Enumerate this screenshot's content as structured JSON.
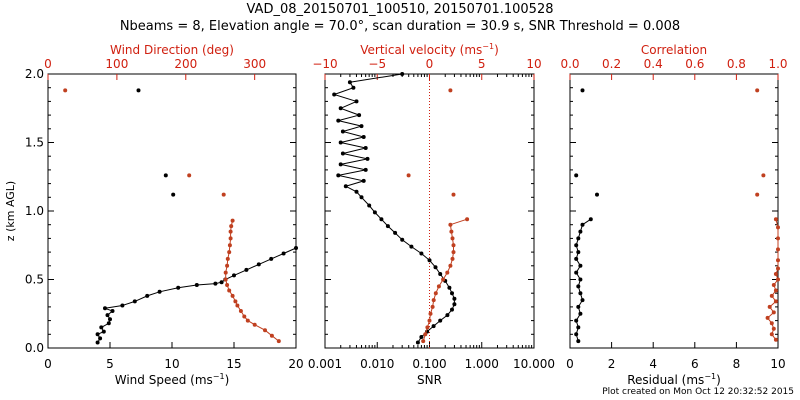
{
  "header": {
    "title_line1": "VAD_08_20150701_100510, 20150701.100528",
    "title_line2": "Nbeams = 8, Elevation angle = 70.0°, scan duration = 30.9 s, SNR Threshold = 0.008"
  },
  "footer": {
    "created": "Plot created on Mon Oct 12 20:32:52 2015"
  },
  "colors": {
    "black_series": "#000000",
    "red_series": "#c04020",
    "red_axis": "#d02010"
  },
  "chart_data": [
    {
      "type": "scatter",
      "ylabel": "z (km AGL)",
      "ylim": [
        0.0,
        2.0
      ],
      "yticks": [
        "0.0",
        "0.5",
        "1.0",
        "1.5",
        "2.0"
      ],
      "bottom_axis": {
        "label": "Wind Speed (ms",
        "label_sup": "−1",
        "label_end": ")",
        "lim": [
          0,
          20
        ],
        "ticks": [
          "0",
          "5",
          "10",
          "15",
          "20"
        ]
      },
      "top_axis": {
        "label": "Wind Direction (deg)",
        "lim": [
          0,
          360
        ],
        "ticks": [
          "0",
          "100",
          "200",
          "300"
        ]
      },
      "series": [
        {
          "axis": "bottom",
          "color": "black",
          "line": true,
          "points": [
            [
              4.0,
              0.04
            ],
            [
              4.2,
              0.07
            ],
            [
              4.0,
              0.1
            ],
            [
              4.5,
              0.12
            ],
            [
              4.3,
              0.15
            ],
            [
              4.9,
              0.18
            ],
            [
              5.0,
              0.21
            ],
            [
              4.8,
              0.24
            ],
            [
              5.2,
              0.27
            ],
            [
              4.6,
              0.29
            ],
            [
              6.0,
              0.31
            ],
            [
              7.0,
              0.34
            ],
            [
              8.0,
              0.38
            ],
            [
              9.0,
              0.41
            ],
            [
              10.5,
              0.44
            ],
            [
              12.0,
              0.46
            ],
            [
              13.5,
              0.47
            ],
            [
              14.0,
              0.48
            ],
            [
              14.3,
              0.5
            ],
            [
              15.0,
              0.53
            ],
            [
              16.0,
              0.57
            ],
            [
              17.0,
              0.61
            ],
            [
              18.0,
              0.65
            ],
            [
              19.0,
              0.69
            ],
            [
              20.0,
              0.73
            ]
          ]
        },
        {
          "axis": "bottom",
          "color": "black",
          "line": false,
          "points": [
            [
              7.3,
              1.88
            ],
            [
              9.5,
              1.26
            ],
            [
              10.1,
              1.12
            ]
          ]
        },
        {
          "axis": "top",
          "color": "red",
          "line": true,
          "points": [
            [
              335,
              0.05
            ],
            [
              325,
              0.09
            ],
            [
              315,
              0.13
            ],
            [
              300,
              0.17
            ],
            [
              290,
              0.2
            ],
            [
              285,
              0.23
            ],
            [
              280,
              0.27
            ],
            [
              275,
              0.31
            ],
            [
              272,
              0.34
            ],
            [
              268,
              0.38
            ],
            [
              263,
              0.42
            ],
            [
              260,
              0.46
            ],
            [
              258,
              0.5
            ],
            [
              258,
              0.55
            ],
            [
              260,
              0.6
            ],
            [
              261,
              0.65
            ],
            [
              263,
              0.7
            ],
            [
              264,
              0.75
            ],
            [
              265,
              0.8
            ],
            [
              265,
              0.85
            ],
            [
              266,
              0.89
            ],
            [
              268,
              0.93
            ]
          ]
        },
        {
          "axis": "top",
          "color": "red",
          "line": false,
          "points": [
            [
              25,
              1.88
            ],
            [
              205,
              1.26
            ],
            [
              255,
              1.12
            ]
          ]
        }
      ]
    },
    {
      "type": "scatter",
      "ylim": [
        0.0,
        2.0
      ],
      "bottom_axis": {
        "label": "SNR",
        "scale": "log",
        "lim": [
          0.001,
          10.0
        ],
        "ticks": [
          "0.001",
          "0.010",
          "0.100",
          "1.000",
          "10.000"
        ]
      },
      "top_axis": {
        "label": "Vertical velocity (ms",
        "label_sup": "−1",
        "label_end": ")",
        "lim": [
          -10,
          10
        ],
        "ticks": [
          "−10",
          "−5",
          "0",
          "5",
          "10"
        ]
      },
      "reference_line": {
        "axis": "top",
        "value": 0
      },
      "series": [
        {
          "axis": "bottom",
          "color": "black",
          "line": true,
          "points": [
            [
              0.03,
              2.0
            ],
            [
              0.003,
              1.94
            ],
            [
              0.0035,
              1.9
            ],
            [
              0.0015,
              1.85
            ],
            [
              0.004,
              1.8
            ],
            [
              0.002,
              1.75
            ],
            [
              0.0045,
              1.7
            ],
            [
              0.0018,
              1.66
            ],
            [
              0.005,
              1.62
            ],
            [
              0.0022,
              1.58
            ],
            [
              0.0055,
              1.54
            ],
            [
              0.002,
              1.5
            ],
            [
              0.006,
              1.46
            ],
            [
              0.0022,
              1.42
            ],
            [
              0.0065,
              1.38
            ],
            [
              0.002,
              1.34
            ],
            [
              0.006,
              1.3
            ],
            [
              0.0018,
              1.26
            ],
            [
              0.0055,
              1.22
            ],
            [
              0.0025,
              1.18
            ],
            [
              0.004,
              1.14
            ],
            [
              0.005,
              1.1
            ],
            [
              0.007,
              1.04
            ],
            [
              0.009,
              0.99
            ],
            [
              0.012,
              0.94
            ],
            [
              0.016,
              0.89
            ],
            [
              0.022,
              0.84
            ],
            [
              0.03,
              0.79
            ],
            [
              0.045,
              0.74
            ],
            [
              0.07,
              0.69
            ],
            [
              0.1,
              0.64
            ],
            [
              0.13,
              0.59
            ],
            [
              0.16,
              0.54
            ],
            [
              0.2,
              0.49
            ],
            [
              0.24,
              0.44
            ],
            [
              0.27,
              0.4
            ],
            [
              0.3,
              0.36
            ],
            [
              0.3,
              0.32
            ],
            [
              0.27,
              0.28
            ],
            [
              0.22,
              0.24
            ],
            [
              0.16,
              0.2
            ],
            [
              0.12,
              0.16
            ],
            [
              0.09,
              0.12
            ],
            [
              0.07,
              0.08
            ],
            [
              0.06,
              0.04
            ]
          ]
        },
        {
          "axis": "top",
          "color": "red",
          "line": true,
          "points": [
            [
              3.6,
              0.94
            ],
            [
              2.0,
              0.9
            ],
            [
              2.1,
              0.85
            ],
            [
              2.2,
              0.8
            ],
            [
              2.3,
              0.75
            ],
            [
              2.3,
              0.7
            ],
            [
              2.2,
              0.65
            ],
            [
              2.0,
              0.6
            ],
            [
              1.7,
              0.55
            ],
            [
              1.3,
              0.5
            ],
            [
              0.9,
              0.45
            ],
            [
              0.6,
              0.4
            ],
            [
              0.4,
              0.35
            ],
            [
              0.3,
              0.3
            ],
            [
              0.1,
              0.25
            ],
            [
              0.0,
              0.2
            ],
            [
              -0.2,
              0.15
            ],
            [
              -0.4,
              0.1
            ],
            [
              -0.6,
              0.05
            ]
          ]
        },
        {
          "axis": "top",
          "color": "red",
          "line": false,
          "points": [
            [
              2.0,
              1.88
            ],
            [
              -2.0,
              1.26
            ],
            [
              2.3,
              1.12
            ]
          ]
        }
      ]
    },
    {
      "type": "scatter",
      "ylim": [
        0.0,
        2.0
      ],
      "bottom_axis": {
        "label": "Residual (ms",
        "label_sup": "−1",
        "label_end": ")",
        "lim": [
          0,
          10
        ],
        "ticks": [
          "0",
          "2",
          "4",
          "6",
          "8",
          "10"
        ]
      },
      "top_axis": {
        "label": "Correlation",
        "lim": [
          0.0,
          1.0
        ],
        "ticks": [
          "0.0",
          "0.2",
          "0.4",
          "0.6",
          "0.8",
          "1.0"
        ]
      },
      "series": [
        {
          "axis": "bottom",
          "color": "black",
          "line": true,
          "points": [
            [
              1.0,
              0.94
            ],
            [
              0.6,
              0.9
            ],
            [
              0.5,
              0.85
            ],
            [
              0.4,
              0.8
            ],
            [
              0.3,
              0.75
            ],
            [
              0.4,
              0.7
            ],
            [
              0.3,
              0.65
            ],
            [
              0.5,
              0.6
            ],
            [
              0.3,
              0.55
            ],
            [
              0.5,
              0.5
            ],
            [
              0.4,
              0.45
            ],
            [
              0.5,
              0.4
            ],
            [
              0.6,
              0.35
            ],
            [
              0.4,
              0.3
            ],
            [
              0.5,
              0.25
            ],
            [
              0.3,
              0.2
            ],
            [
              0.4,
              0.15
            ],
            [
              0.3,
              0.1
            ],
            [
              0.4,
              0.05
            ]
          ]
        },
        {
          "axis": "bottom",
          "color": "black",
          "line": false,
          "points": [
            [
              0.6,
              1.88
            ],
            [
              0.3,
              1.26
            ],
            [
              1.3,
              1.12
            ]
          ]
        },
        {
          "axis": "top",
          "color": "red",
          "line": true,
          "points": [
            [
              0.99,
              0.94
            ],
            [
              1.0,
              0.88
            ],
            [
              1.0,
              0.8
            ],
            [
              1.0,
              0.72
            ],
            [
              1.0,
              0.64
            ],
            [
              1.0,
              0.58
            ],
            [
              0.99,
              0.54
            ],
            [
              1.0,
              0.5
            ],
            [
              0.98,
              0.46
            ],
            [
              0.99,
              0.42
            ],
            [
              0.97,
              0.38
            ],
            [
              0.99,
              0.34
            ],
            [
              0.96,
              0.3
            ],
            [
              0.98,
              0.26
            ],
            [
              0.95,
              0.22
            ],
            [
              0.97,
              0.18
            ],
            [
              0.98,
              0.14
            ],
            [
              0.97,
              0.1
            ],
            [
              0.99,
              0.06
            ]
          ]
        },
        {
          "axis": "top",
          "color": "red",
          "line": false,
          "points": [
            [
              0.9,
              1.88
            ],
            [
              0.93,
              1.26
            ],
            [
              0.9,
              1.12
            ]
          ]
        }
      ]
    }
  ]
}
